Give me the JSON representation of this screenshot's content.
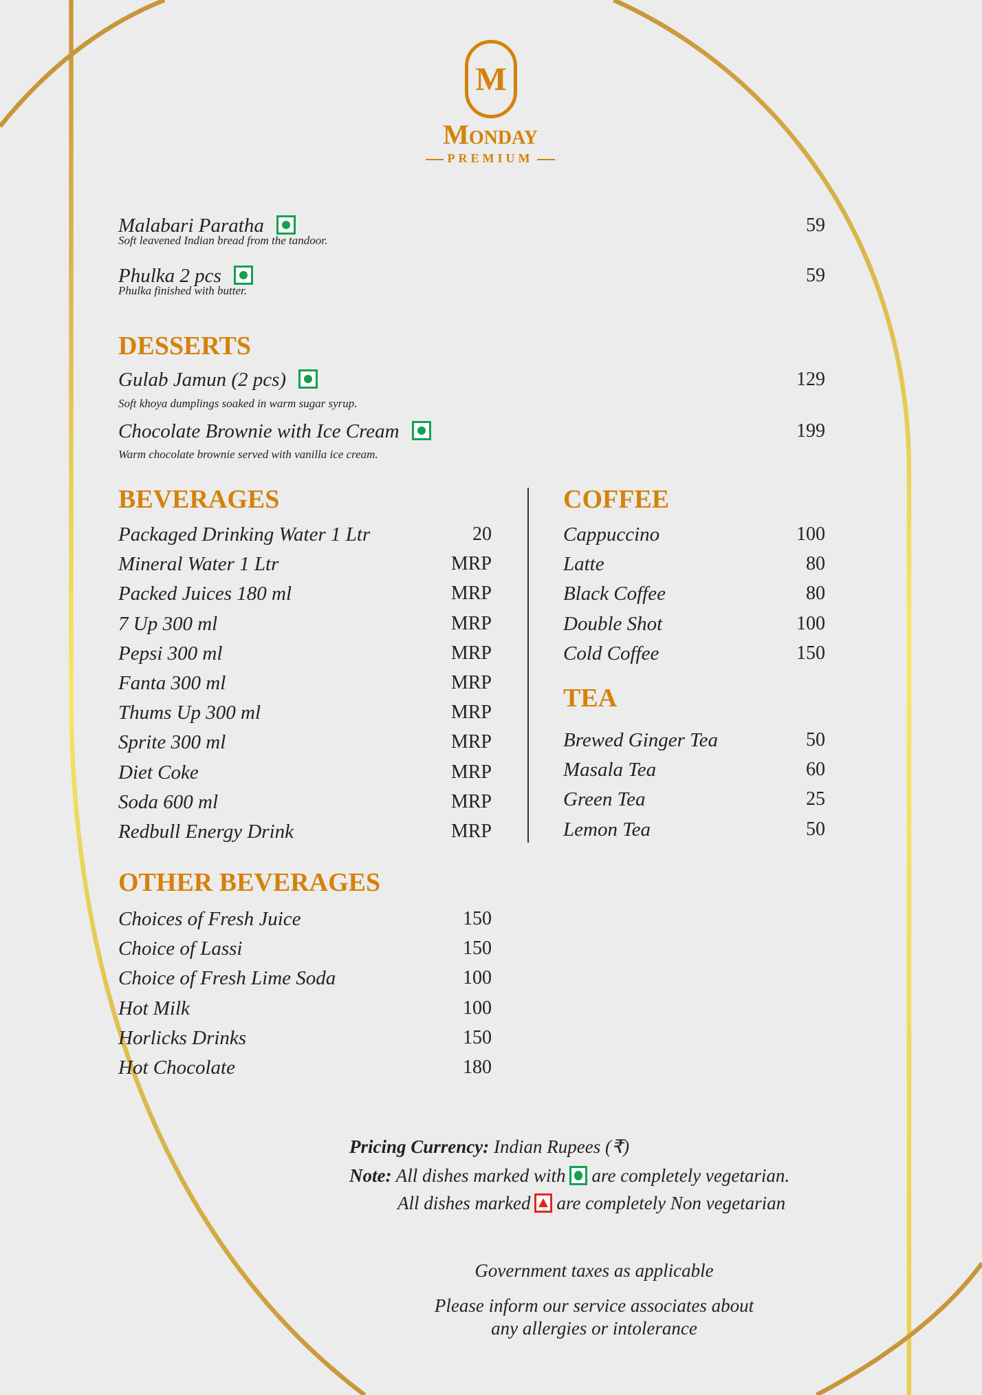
{
  "brand": {
    "monogram": "M",
    "name": "Monday",
    "tagline": "PREMIUM"
  },
  "breads": [
    {
      "name": "Malabari Paratha",
      "desc": "Soft leavened Indian bread from the tandoor.",
      "price": "59",
      "veg": true
    },
    {
      "name": "Phulka 2 pcs",
      "desc": "Phulka finished with butter.",
      "price": "59",
      "veg": true
    }
  ],
  "desserts": {
    "title": "DESSERTS",
    "items": [
      {
        "name": "Gulab Jamun (2 pcs)",
        "desc": "Soft khoya dumplings soaked in warm sugar syrup.",
        "price": "129",
        "veg": true
      },
      {
        "name": "Chocolate Brownie with Ice Cream",
        "desc": "Warm chocolate brownie served with vanilla ice cream.",
        "price": "199",
        "veg": true
      }
    ]
  },
  "beverages": {
    "title": "BEVERAGES",
    "items": [
      {
        "name": "Packaged Drinking Water 1 Ltr",
        "price": "20"
      },
      {
        "name": "Mineral Water 1 Ltr",
        "price": "MRP"
      },
      {
        "name": "Packed Juices 180 ml",
        "price": "MRP"
      },
      {
        "name": "7 Up 300 ml",
        "price": "MRP"
      },
      {
        "name": "Pepsi 300 ml",
        "price": "MRP"
      },
      {
        "name": "Fanta 300 ml",
        "price": "MRP"
      },
      {
        "name": "Thums Up 300 ml",
        "price": "MRP"
      },
      {
        "name": "Sprite 300 ml",
        "price": "MRP"
      },
      {
        "name": "Diet Coke",
        "price": "MRP"
      },
      {
        "name": "Soda 600 ml",
        "price": "MRP"
      },
      {
        "name": "Redbull Energy Drink",
        "price": "MRP"
      }
    ]
  },
  "coffee": {
    "title": "COFFEE",
    "items": [
      {
        "name": "Cappuccino",
        "price": "100"
      },
      {
        "name": "Latte",
        "price": "80"
      },
      {
        "name": "Black Coffee",
        "price": "80"
      },
      {
        "name": "Double Shot",
        "price": "100"
      },
      {
        "name": "Cold Coffee",
        "price": "150"
      }
    ]
  },
  "tea": {
    "title": "TEA",
    "items": [
      {
        "name": "Brewed Ginger Tea",
        "price": "50"
      },
      {
        "name": "Masala Tea",
        "price": "60"
      },
      {
        "name": "Green Tea",
        "price": "25"
      },
      {
        "name": "Lemon Tea",
        "price": "50"
      }
    ]
  },
  "other_beverages": {
    "title": "OTHER BEVERAGES",
    "items": [
      {
        "name": "Choices of Fresh Juice",
        "price": "150"
      },
      {
        "name": "Choice of Lassi",
        "price": "150"
      },
      {
        "name": "Choice of Fresh Lime Soda",
        "price": "100"
      },
      {
        "name": "Hot Milk",
        "price": "100"
      },
      {
        "name": "Horlicks Drinks",
        "price": "150"
      },
      {
        "name": "Hot Chocolate",
        "price": "180"
      }
    ]
  },
  "footer": {
    "currency_label": "Pricing Currency:",
    "currency_value": "Indian Rupees (₹)",
    "note_label": "Note:",
    "veg_note_pre": "All dishes marked with",
    "veg_note_post": "are completely vegetarian.",
    "nonveg_note_pre": "All dishes marked",
    "nonveg_note_post": "are completely Non vegetarian",
    "taxes": "Government taxes as applicable",
    "allergy_line1": "Please inform our service associates about",
    "allergy_line2": "any allergies or intolerance"
  },
  "colors": {
    "accent": "#d4820a",
    "gold_dark": "#c8963a",
    "gold_light": "#f6e766",
    "veg": "#12a150",
    "nonveg": "#e0261e",
    "background": "#ececec"
  }
}
